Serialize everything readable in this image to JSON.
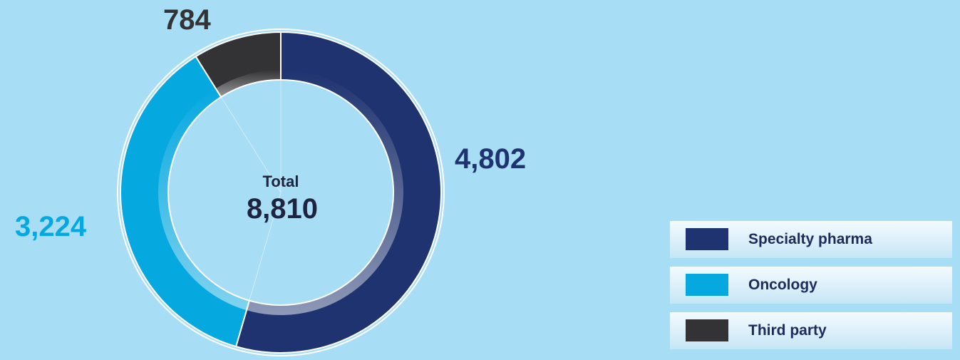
{
  "chart_data": {
    "type": "pie",
    "variant": "donut",
    "center_label": "Total",
    "center_value": "8,810",
    "total": 8810,
    "slices": [
      {
        "name": "Specialty pharma",
        "value": 4802,
        "label": "4,802",
        "color": "#1f3370",
        "label_color": "#1f3370"
      },
      {
        "name": "Oncology",
        "value": 3224,
        "label": "3,224",
        "color": "#06a8e0",
        "label_color": "#06a8e0"
      },
      {
        "name": "Third party",
        "value": 784,
        "label": "784",
        "color": "#333336",
        "label_color": "#333336"
      }
    ],
    "legend_position": "bottom-right"
  },
  "legend": {
    "items": [
      {
        "label": "Specialty pharma",
        "color": "#1f3370"
      },
      {
        "label": "Oncology",
        "color": "#06a8e0"
      },
      {
        "label": "Third party",
        "color": "#333336"
      }
    ]
  }
}
